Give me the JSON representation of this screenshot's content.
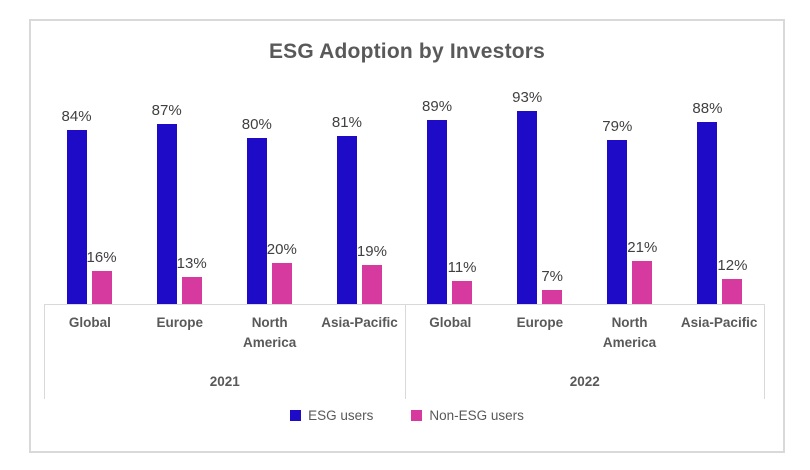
{
  "chart": {
    "border_color": "#D9D9D9",
    "background": "#ffffff",
    "title_color": "#595959",
    "axis_text_color": "#595959",
    "data_label_color": "#404040"
  },
  "chart_data": {
    "type": "bar",
    "title": "ESG Adoption by Investors",
    "value_suffix": "%",
    "ylim": [
      0,
      100
    ],
    "gridlines": false,
    "data_labels": "outside-end",
    "legend_position": "bottom",
    "series": [
      {
        "name": "ESG users",
        "color": "#1E0BC8"
      },
      {
        "name": "Non-ESG users",
        "color": "#D63A9E"
      }
    ],
    "groups": [
      {
        "year": "2021",
        "categories": [
          "Global",
          "Europe",
          "North America",
          "Asia-Pacific"
        ],
        "values": {
          "ESG users": [
            84,
            87,
            80,
            81
          ],
          "Non-ESG users": [
            16,
            13,
            20,
            19
          ]
        }
      },
      {
        "year": "2022",
        "categories": [
          "Global",
          "Europe",
          "North America",
          "Asia-Pacific"
        ],
        "values": {
          "ESG users": [
            89,
            93,
            79,
            88
          ],
          "Non-ESG users": [
            11,
            7,
            21,
            12
          ]
        }
      }
    ]
  }
}
